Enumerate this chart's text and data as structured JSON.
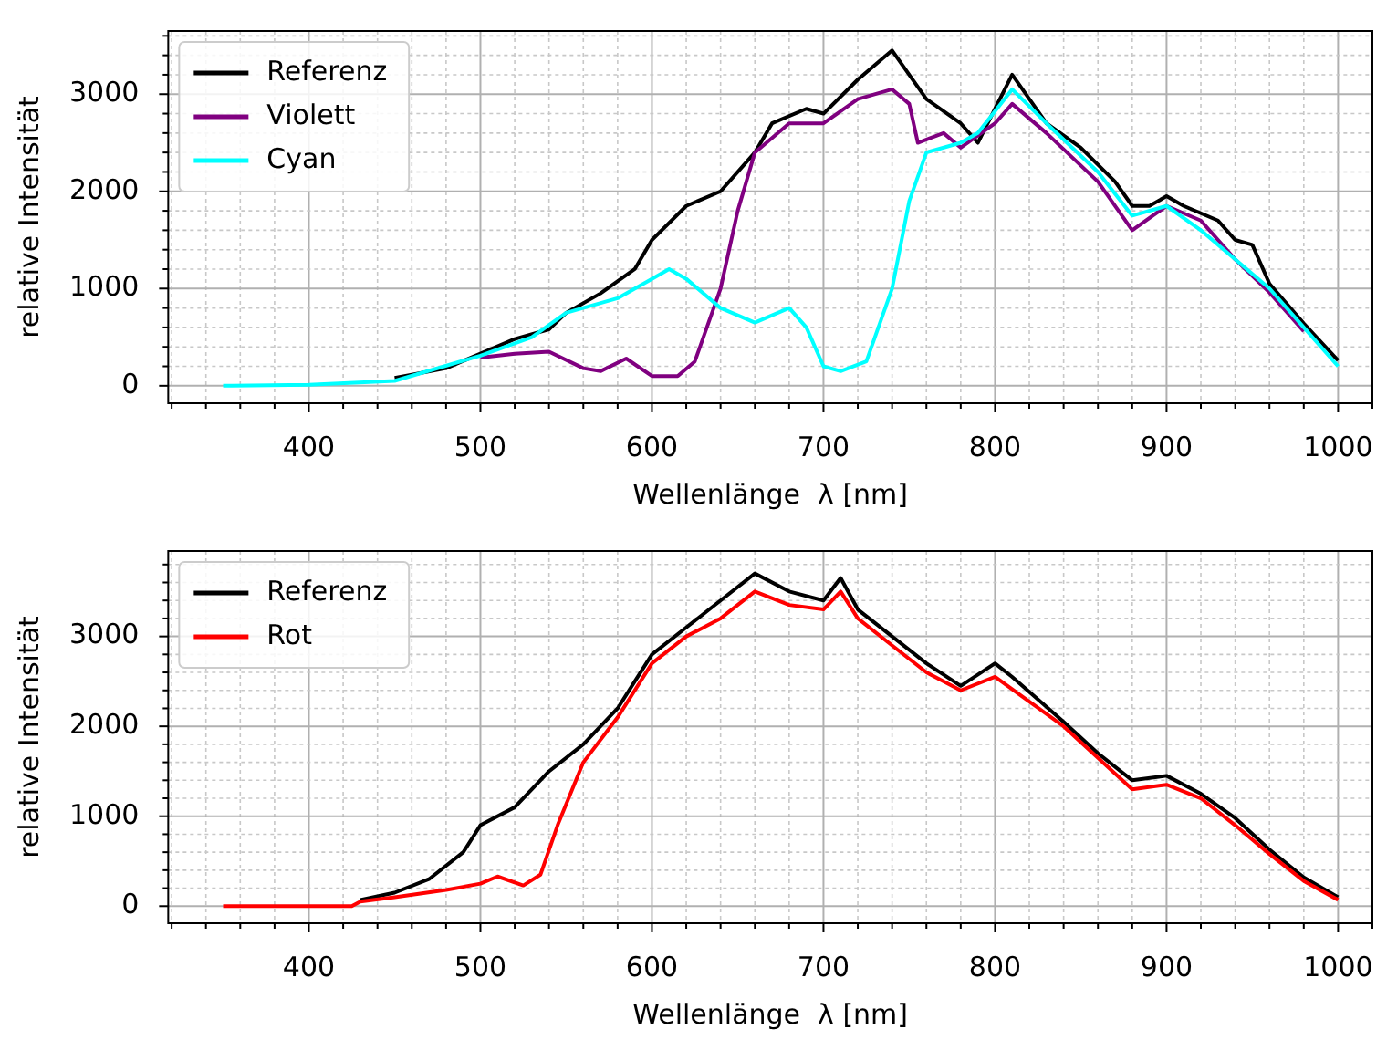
{
  "chart_data": [
    {
      "type": "line",
      "xlabel": "Wellenlänge  λ [nm]",
      "ylabel": "relative Intensität",
      "xlim": [
        318,
        1020
      ],
      "ylim": [
        -180,
        3650
      ],
      "xticks": [
        {
          "value": 320,
          "label": null
        },
        {
          "value": 340,
          "label": null
        },
        {
          "value": 360,
          "label": null
        },
        {
          "value": 380,
          "label": null
        },
        400,
        {
          "value": 420,
          "label": null
        },
        {
          "value": 440,
          "label": null
        },
        {
          "value": 460,
          "label": null
        },
        {
          "value": 480,
          "label": null
        },
        500,
        {
          "value": 520,
          "label": null
        },
        {
          "value": 540,
          "label": null
        },
        {
          "value": 560,
          "label": null
        },
        {
          "value": 580,
          "label": null
        },
        600,
        {
          "value": 620,
          "label": null
        },
        {
          "value": 640,
          "label": null
        },
        {
          "value": 660,
          "label": null
        },
        {
          "value": 680,
          "label": null
        },
        700,
        {
          "value": 720,
          "label": null
        },
        {
          "value": 740,
          "label": null
        },
        {
          "value": 760,
          "label": null
        },
        {
          "value": 780,
          "label": null
        },
        800,
        {
          "value": 820,
          "label": null
        },
        {
          "value": 840,
          "label": null
        },
        {
          "value": 860,
          "label": null
        },
        {
          "value": 880,
          "label": null
        },
        900,
        {
          "value": 920,
          "label": null
        },
        {
          "value": 940,
          "label": null
        },
        {
          "value": 960,
          "label": null
        },
        {
          "value": 980,
          "label": null
        },
        1000,
        {
          "value": 1020,
          "label": null
        }
      ],
      "yticks": [
        0,
        {
          "value": 200,
          "label": null
        },
        {
          "value": 400,
          "label": null
        },
        {
          "value": 600,
          "label": null
        },
        {
          "value": 800,
          "label": null
        },
        1000,
        {
          "value": 1200,
          "label": null
        },
        {
          "value": 1400,
          "label": null
        },
        {
          "value": 1600,
          "label": null
        },
        {
          "value": 1800,
          "label": null
        },
        2000,
        {
          "value": 2200,
          "label": null
        },
        {
          "value": 2400,
          "label": null
        },
        {
          "value": 2600,
          "label": null
        },
        {
          "value": 2800,
          "label": null
        },
        3000,
        {
          "value": 3200,
          "label": null
        },
        {
          "value": 3400,
          "label": null
        },
        {
          "value": 3600,
          "label": null
        }
      ],
      "grid": true,
      "legend": "top left",
      "line_style": "solid",
      "series": [
        {
          "name": "Referenz",
          "color": "#000000",
          "x": [
            450,
            480,
            500,
            520,
            540,
            550,
            570,
            590,
            600,
            620,
            640,
            660,
            670,
            690,
            700,
            720,
            730,
            740,
            760,
            780,
            790,
            800,
            810,
            830,
            850,
            870,
            880,
            890,
            900,
            910,
            930,
            940,
            950,
            960,
            980,
            1000
          ],
          "values": [
            80,
            180,
            330,
            480,
            580,
            750,
            950,
            1200,
            1500,
            1850,
            2000,
            2400,
            2700,
            2850,
            2800,
            3150,
            3300,
            3450,
            2950,
            2700,
            2500,
            2850,
            3200,
            2700,
            2450,
            2100,
            1850,
            1850,
            1950,
            1850,
            1700,
            1500,
            1450,
            1050,
            640,
            260
          ]
        },
        {
          "name": "Violett",
          "color": "#800080",
          "x": [
            500,
            520,
            540,
            560,
            570,
            585,
            600,
            615,
            625,
            640,
            650,
            660,
            680,
            700,
            720,
            740,
            750,
            755,
            770,
            780,
            800,
            810,
            830,
            860,
            880,
            900,
            920,
            940,
            960,
            980
          ],
          "values": [
            290,
            330,
            350,
            180,
            150,
            280,
            100,
            100,
            250,
            1000,
            1800,
            2400,
            2700,
            2700,
            2950,
            3050,
            2900,
            2500,
            2600,
            2450,
            2700,
            2900,
            2600,
            2100,
            1600,
            1850,
            1700,
            1300,
            960,
            560
          ]
        },
        {
          "name": "Cyan",
          "color": "#00ffff",
          "x": [
            350,
            400,
            450,
            500,
            530,
            550,
            580,
            600,
            610,
            620,
            640,
            660,
            680,
            690,
            700,
            710,
            725,
            740,
            750,
            760,
            780,
            790,
            810,
            830,
            860,
            880,
            900,
            920,
            940,
            960,
            980,
            1000
          ],
          "values": [
            0,
            10,
            50,
            310,
            500,
            750,
            900,
            1100,
            1200,
            1100,
            800,
            650,
            800,
            600,
            200,
            150,
            250,
            1000,
            1900,
            2400,
            2500,
            2600,
            3050,
            2700,
            2200,
            1750,
            1850,
            1600,
            1300,
            1000,
            600,
            200
          ]
        }
      ]
    },
    {
      "type": "line",
      "xlabel": "Wellenlänge  λ [nm]",
      "ylabel": "relative Intensität",
      "xlim": [
        318,
        1020
      ],
      "ylim": [
        -190,
        3950
      ],
      "xticks": [
        {
          "value": 320,
          "label": null
        },
        {
          "value": 340,
          "label": null
        },
        {
          "value": 360,
          "label": null
        },
        {
          "value": 380,
          "label": null
        },
        400,
        {
          "value": 420,
          "label": null
        },
        {
          "value": 440,
          "label": null
        },
        {
          "value": 460,
          "label": null
        },
        {
          "value": 480,
          "label": null
        },
        500,
        {
          "value": 520,
          "label": null
        },
        {
          "value": 540,
          "label": null
        },
        {
          "value": 560,
          "label": null
        },
        {
          "value": 580,
          "label": null
        },
        600,
        {
          "value": 620,
          "label": null
        },
        {
          "value": 640,
          "label": null
        },
        {
          "value": 660,
          "label": null
        },
        {
          "value": 680,
          "label": null
        },
        700,
        {
          "value": 720,
          "label": null
        },
        {
          "value": 740,
          "label": null
        },
        {
          "value": 760,
          "label": null
        },
        {
          "value": 780,
          "label": null
        },
        800,
        {
          "value": 820,
          "label": null
        },
        {
          "value": 840,
          "label": null
        },
        {
          "value": 860,
          "label": null
        },
        {
          "value": 880,
          "label": null
        },
        900,
        {
          "value": 920,
          "label": null
        },
        {
          "value": 940,
          "label": null
        },
        {
          "value": 960,
          "label": null
        },
        {
          "value": 980,
          "label": null
        },
        1000,
        {
          "value": 1020,
          "label": null
        }
      ],
      "yticks": [
        0,
        {
          "value": 200,
          "label": null
        },
        {
          "value": 400,
          "label": null
        },
        {
          "value": 600,
          "label": null
        },
        {
          "value": 800,
          "label": null
        },
        1000,
        {
          "value": 1200,
          "label": null
        },
        {
          "value": 1400,
          "label": null
        },
        {
          "value": 1600,
          "label": null
        },
        {
          "value": 1800,
          "label": null
        },
        2000,
        {
          "value": 2200,
          "label": null
        },
        {
          "value": 2400,
          "label": null
        },
        {
          "value": 2600,
          "label": null
        },
        {
          "value": 2800,
          "label": null
        },
        3000,
        {
          "value": 3200,
          "label": null
        },
        {
          "value": 3400,
          "label": null
        },
        {
          "value": 3600,
          "label": null
        },
        {
          "value": 3800,
          "label": null
        }
      ],
      "grid": true,
      "legend": "top left",
      "line_style": "solid",
      "series": [
        {
          "name": "Referenz",
          "color": "#000000",
          "x": [
            430,
            450,
            470,
            490,
            500,
            520,
            540,
            560,
            580,
            600,
            620,
            640,
            660,
            680,
            700,
            710,
            720,
            740,
            760,
            780,
            800,
            810,
            840,
            860,
            880,
            900,
            920,
            940,
            960,
            980,
            1000
          ],
          "values": [
            70,
            150,
            300,
            600,
            900,
            1100,
            1500,
            1800,
            2200,
            2800,
            3100,
            3400,
            3700,
            3500,
            3400,
            3650,
            3300,
            3000,
            2700,
            2450,
            2700,
            2550,
            2050,
            1700,
            1400,
            1450,
            1250,
            980,
            630,
            320,
            100
          ]
        },
        {
          "name": "Rot",
          "color": "#ff0000",
          "x": [
            350,
            425,
            430,
            450,
            480,
            500,
            510,
            525,
            535,
            545,
            560,
            580,
            600,
            620,
            640,
            660,
            680,
            700,
            710,
            720,
            740,
            760,
            780,
            800,
            840,
            860,
            880,
            900,
            920,
            940,
            960,
            980,
            1000
          ],
          "values": [
            0,
            0,
            50,
            100,
            180,
            250,
            330,
            230,
            350,
            900,
            1600,
            2100,
            2700,
            3000,
            3200,
            3500,
            3350,
            3300,
            3500,
            3200,
            2900,
            2600,
            2400,
            2550,
            2000,
            1650,
            1300,
            1350,
            1200,
            900,
            580,
            280,
            70
          ]
        }
      ]
    }
  ]
}
